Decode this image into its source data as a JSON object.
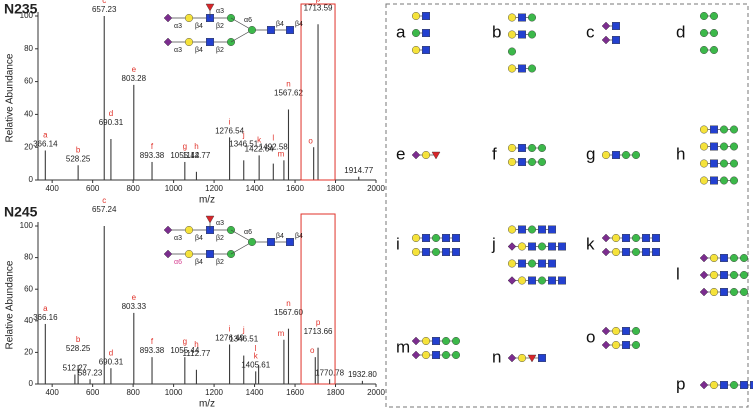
{
  "chart_data": [
    {
      "type": "stick",
      "title": "N235",
      "xlabel": "m/z",
      "ylabel": "Relative Abundance",
      "xlim": [
        330,
        2000
      ],
      "ylim": [
        0,
        100
      ],
      "xticks": [
        400,
        600,
        800,
        1000,
        1200,
        1400,
        1600,
        1800,
        2000
      ],
      "yticks": [
        0,
        20,
        40,
        60,
        80,
        100
      ],
      "color": "#3a3a3a",
      "annotation_color": "#e0322a",
      "x": [
        366.14,
        528.25,
        657.23,
        690.31,
        803.28,
        893.38,
        1055.44,
        1112.77,
        1276.54,
        1346.51,
        1422.64,
        1492.58,
        1545,
        1567.62,
        1692,
        1713.59,
        1914.77
      ],
      "values": [
        18,
        9,
        100,
        25,
        58,
        11,
        11,
        5,
        26,
        12,
        15,
        10,
        12,
        43,
        20,
        95,
        2
      ],
      "x_labels": [
        "366.14",
        "528.25",
        "657.23",
        "690.31",
        "803.28",
        "893.38",
        "1055.44",
        "1112.77",
        "1276.54",
        "1346.51",
        "1422.64",
        "1492.58",
        null,
        "1567.62",
        null,
        "1713.59",
        "1914.77"
      ],
      "letters": [
        "a",
        "b",
        "c",
        "d",
        "e",
        "f",
        "g",
        "h",
        "i",
        "j",
        "k",
        "l",
        "m",
        "n",
        "o",
        "p",
        null
      ],
      "structure_labels": [
        "α3",
        "α3",
        "β4",
        "β2",
        "α6",
        "β4",
        "β4",
        "α3",
        "β4",
        "β2"
      ]
    },
    {
      "type": "stick",
      "title": "N245",
      "xlabel": "m/z",
      "ylabel": "Relative Abundance",
      "xlim": [
        330,
        2000
      ],
      "ylim": [
        0,
        100
      ],
      "xticks": [
        400,
        600,
        800,
        1000,
        1200,
        1400,
        1600,
        1800,
        2000
      ],
      "yticks": [
        0,
        20,
        40,
        60,
        80,
        100
      ],
      "color": "#3a3a3a",
      "annotation_color": "#e0322a",
      "x": [
        366.16,
        512.27,
        528.25,
        587.23,
        657.24,
        690.31,
        803.33,
        893.38,
        1055.44,
        1112.77,
        1276.49,
        1346.51,
        1405.61,
        1420,
        1545,
        1567.6,
        1700,
        1713.66,
        1770.78,
        1932.8
      ],
      "values": [
        38,
        6,
        12,
        3,
        100,
        10,
        45,
        17,
        17,
        9,
        25,
        18,
        8,
        12,
        28,
        35,
        17,
        23,
        3,
        2
      ],
      "x_labels": [
        "366.16",
        "512.27",
        "528.25",
        "587.23",
        "657.24",
        "690.31",
        "803.33",
        "893.38",
        "1055.44",
        "1112.77",
        "1276.49",
        "1346.51",
        "1405.61",
        null,
        null,
        "1567.60",
        null,
        "1713.66",
        "1770.78",
        "1932.80"
      ],
      "letters": [
        "a",
        null,
        "b",
        null,
        "c",
        "d",
        "e",
        "f",
        "g",
        "h",
        "i",
        "j",
        "k",
        "l",
        "m",
        "n",
        "o",
        "p",
        null,
        null
      ],
      "structure_labels": [
        "α3",
        "α3",
        "β4",
        "β2",
        "α6",
        "β4",
        "β4",
        "α6",
        "β4",
        "β2"
      ]
    }
  ],
  "structure_panel": {
    "labels": [
      "a",
      "b",
      "c",
      "d",
      "e",
      "f",
      "g",
      "h",
      "i",
      "j",
      "k",
      "l",
      "m",
      "n",
      "o",
      "p"
    ]
  }
}
